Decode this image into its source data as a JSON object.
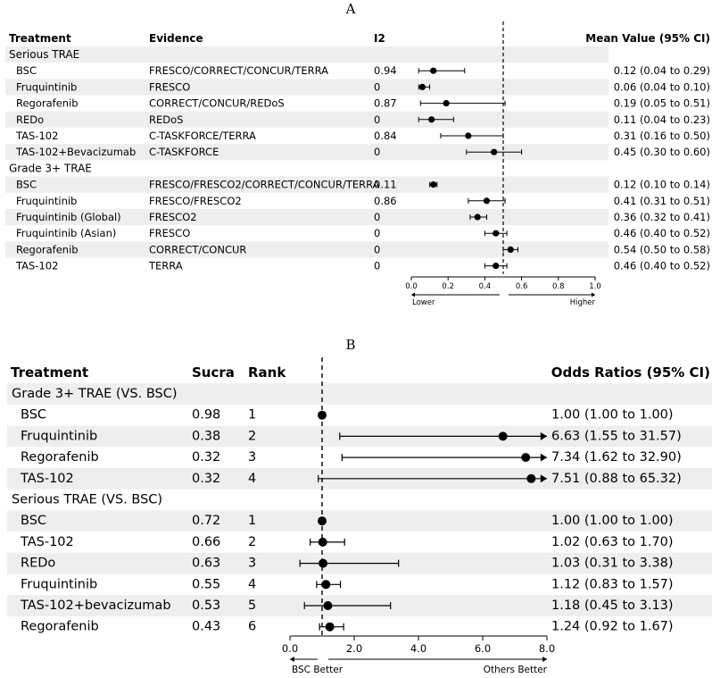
{
  "chart_data": [
    {
      "type": "forest",
      "panel_label": "A",
      "columns": {
        "treatment": "Treatment",
        "evidence": "Evidence",
        "i2": "I2",
        "estimate": "Mean Value (95% CI)"
      },
      "groups": [
        {
          "name": "Serious TRAE",
          "rows": [
            {
              "treatment": "BSC",
              "evidence": "FRESCO/CORRECT/CONCUR/TERRA",
              "i2": "0.94",
              "mean": 0.12,
              "lo": 0.04,
              "hi": 0.29,
              "label": "0.12 (0.04 to 0.29)"
            },
            {
              "treatment": "Fruquintinib",
              "evidence": "FRESCO",
              "i2": "0",
              "mean": 0.06,
              "lo": 0.04,
              "hi": 0.1,
              "label": "0.06 (0.04 to 0.10)"
            },
            {
              "treatment": "Regorafenib",
              "evidence": "CORRECT/CONCUR/REDoS",
              "i2": "0.87",
              "mean": 0.19,
              "lo": 0.05,
              "hi": 0.51,
              "label": "0.19 (0.05 to 0.51)"
            },
            {
              "treatment": "REDo",
              "evidence": "REDoS",
              "i2": "0",
              "mean": 0.11,
              "lo": 0.04,
              "hi": 0.23,
              "label": "0.11 (0.04 to 0.23)"
            },
            {
              "treatment": "TAS-102",
              "evidence": "C-TASKFORCE/TERRA",
              "i2": "0.84",
              "mean": 0.31,
              "lo": 0.16,
              "hi": 0.5,
              "label": "0.31 (0.16 to 0.50)"
            },
            {
              "treatment": "TAS-102+Bevacizumab",
              "evidence": "C-TASKFORCE",
              "i2": "0",
              "mean": 0.45,
              "lo": 0.3,
              "hi": 0.6,
              "label": "0.45 (0.30 to 0.60)"
            }
          ]
        },
        {
          "name": "Grade 3+ TRAE",
          "rows": [
            {
              "treatment": "BSC",
              "evidence": "FRESCO/FRESCO2/CORRECT/CONCUR/TERRA",
              "i2": "0.11",
              "mean": 0.12,
              "lo": 0.1,
              "hi": 0.14,
              "label": "0.12 (0.10 to 0.14)"
            },
            {
              "treatment": "Fruquintinib",
              "evidence": "FRESCO/FRESCO2",
              "i2": "0.86",
              "mean": 0.41,
              "lo": 0.31,
              "hi": 0.51,
              "label": "0.41 (0.31 to 0.51)"
            },
            {
              "treatment": "Fruquintinib (Global)",
              "evidence": "FRESCO2",
              "i2": "0",
              "mean": 0.36,
              "lo": 0.32,
              "hi": 0.41,
              "label": "0.36 (0.32 to 0.41)"
            },
            {
              "treatment": "Fruquintinib (Asian)",
              "evidence": "FRESCO",
              "i2": "0",
              "mean": 0.46,
              "lo": 0.4,
              "hi": 0.52,
              "label": "0.46 (0.40 to 0.52)"
            },
            {
              "treatment": "Regorafenib",
              "evidence": "CORRECT/CONCUR",
              "i2": "0",
              "mean": 0.54,
              "lo": 0.5,
              "hi": 0.58,
              "label": "0.54 (0.50 to 0.58)"
            },
            {
              "treatment": "TAS-102",
              "evidence": "TERRA",
              "i2": "0",
              "mean": 0.46,
              "lo": 0.4,
              "hi": 0.52,
              "label": "0.46 (0.40 to 0.52)"
            }
          ]
        }
      ],
      "x_axis": {
        "min": 0,
        "max": 1,
        "ticks": [
          "0.0",
          "0.2",
          "0.4",
          "0.6",
          "0.8",
          "1.0"
        ],
        "reference": 0.5
      },
      "direction_labels": {
        "left": "Lower",
        "right": "Higher"
      }
    },
    {
      "type": "forest",
      "panel_label": "B",
      "columns": {
        "treatment": "Treatment",
        "sucra": "Sucra",
        "rank": "Rank",
        "estimate": "Odds Ratios (95% CI)"
      },
      "groups": [
        {
          "name": "Grade 3+ TRAE (VS. BSC)",
          "rows": [
            {
              "treatment": "BSC",
              "sucra": "0.98",
              "rank": "1",
              "mean": 1.0,
              "lo": 1.0,
              "hi": 1.0,
              "label": "1.00 (1.00 to 1.00)"
            },
            {
              "treatment": "Fruquintinib",
              "sucra": "0.38",
              "rank": "2",
              "mean": 6.63,
              "lo": 1.55,
              "hi": 31.57,
              "label": "6.63 (1.55 to 31.57)"
            },
            {
              "treatment": "Regorafenib",
              "sucra": "0.32",
              "rank": "3",
              "mean": 7.34,
              "lo": 1.62,
              "hi": 32.9,
              "label": "7.34 (1.62 to 32.90)"
            },
            {
              "treatment": "TAS-102",
              "sucra": "0.32",
              "rank": "4",
              "mean": 7.51,
              "lo": 0.88,
              "hi": 65.32,
              "label": "7.51 (0.88 to 65.32)"
            }
          ]
        },
        {
          "name": "Serious TRAE (VS. BSC)",
          "rows": [
            {
              "treatment": "BSC",
              "sucra": "0.72",
              "rank": "1",
              "mean": 1.0,
              "lo": 1.0,
              "hi": 1.0,
              "label": "1.00 (1.00 to 1.00)"
            },
            {
              "treatment": "TAS-102",
              "sucra": "0.66",
              "rank": "2",
              "mean": 1.02,
              "lo": 0.63,
              "hi": 1.7,
              "label": "1.02 (0.63 to 1.70)"
            },
            {
              "treatment": "REDo",
              "sucra": "0.63",
              "rank": "3",
              "mean": 1.03,
              "lo": 0.31,
              "hi": 3.38,
              "label": "1.03 (0.31 to 3.38)"
            },
            {
              "treatment": "Fruquintinib",
              "sucra": "0.55",
              "rank": "4",
              "mean": 1.12,
              "lo": 0.83,
              "hi": 1.57,
              "label": "1.12 (0.83 to 1.57)"
            },
            {
              "treatment": "TAS-102+bevacizumab",
              "sucra": "0.53",
              "rank": "5",
              "mean": 1.18,
              "lo": 0.45,
              "hi": 3.13,
              "label": "1.18 (0.45 to 3.13)"
            },
            {
              "treatment": "Regorafenib",
              "sucra": "0.43",
              "rank": "6",
              "mean": 1.24,
              "lo": 0.92,
              "hi": 1.67,
              "label": "1.24 (0.92 to 1.67)"
            }
          ]
        }
      ],
      "x_axis": {
        "min": 0,
        "max": 8,
        "ticks": [
          "0.0",
          "2.0",
          "4.0",
          "6.0",
          "8.0"
        ],
        "reference": 1
      },
      "direction_labels": {
        "left": "BSC Better",
        "right": "Others Better"
      }
    }
  ],
  "colors": {
    "stripe": "#eeeeee",
    "ink": "#000000",
    "background": "#ffffff"
  }
}
